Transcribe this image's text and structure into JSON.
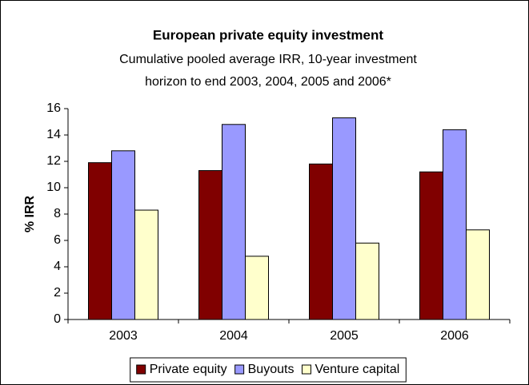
{
  "chart_data": {
    "type": "bar",
    "title": "European private equity investment",
    "subtitle": [
      "Cumulative pooled average IRR, 10-year investment",
      "horizon to end 2003, 2004, 2005 and 2006*"
    ],
    "y_label": "% IRR",
    "categories": [
      "2003",
      "2004",
      "2005",
      "2006"
    ],
    "series": [
      {
        "name": "Private equity",
        "color": "#800000",
        "values": [
          11.9,
          11.3,
          11.8,
          11.2
        ]
      },
      {
        "name": "Buyouts",
        "color": "#9999ff",
        "values": [
          12.8,
          14.8,
          15.3,
          14.4
        ]
      },
      {
        "name": "Venture capital",
        "color": "#ffffcc",
        "values": [
          8.3,
          4.8,
          5.8,
          6.8
        ]
      }
    ],
    "ylim": [
      0,
      16
    ],
    "yticks": [
      0,
      2,
      4,
      6,
      8,
      10,
      12,
      14,
      16
    ],
    "legend": "bottom"
  }
}
